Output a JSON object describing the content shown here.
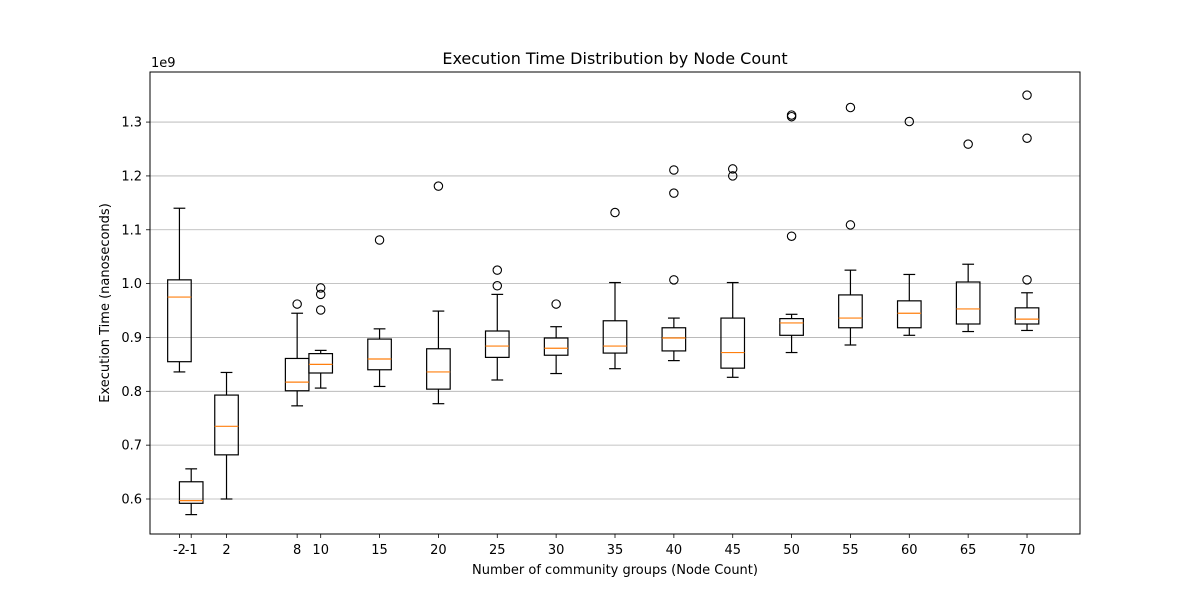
{
  "chart_data": {
    "type": "boxplot",
    "title": "Execution Time Distribution by Node Count",
    "xlabel": "Number of community groups (Node Count)",
    "ylabel": "Execution Time (nanoseconds)",
    "y_offset_label": "1e9",
    "y_scale": 1000000000,
    "xlim": [
      -4.5,
      74.5
    ],
    "ylim": [
      0.535,
      1.393
    ],
    "yticks": [
      0.6,
      0.7,
      0.8,
      0.9,
      1.0,
      1.1,
      1.2,
      1.3
    ],
    "ytick_labels": [
      "0.6",
      "0.7",
      "0.8",
      "0.9",
      "1.0",
      "1.1",
      "1.2",
      "1.3"
    ],
    "xticks": [
      -2,
      -1,
      2,
      8,
      10,
      15,
      20,
      25,
      30,
      35,
      40,
      45,
      50,
      55,
      60,
      65,
      70
    ],
    "xtick_labels": [
      "-2",
      "-1",
      "2",
      "8",
      "10",
      "15",
      "20",
      "25",
      "30",
      "35",
      "40",
      "45",
      "50",
      "55",
      "60",
      "65",
      "70"
    ],
    "grid": "y",
    "box_color": "#000000",
    "median_color": "#ff7f0e",
    "boxes": [
      {
        "x": -2,
        "whislo": 0.836,
        "q1": 0.855,
        "med": 0.975,
        "q3": 1.007,
        "whishi": 1.14,
        "fliers": []
      },
      {
        "x": -1,
        "whislo": 0.571,
        "q1": 0.592,
        "med": 0.597,
        "q3": 0.632,
        "whishi": 0.656,
        "fliers": []
      },
      {
        "x": 2,
        "whislo": 0.6,
        "q1": 0.682,
        "med": 0.735,
        "q3": 0.793,
        "whishi": 0.835,
        "fliers": []
      },
      {
        "x": 8,
        "whislo": 0.773,
        "q1": 0.801,
        "med": 0.817,
        "q3": 0.861,
        "whishi": 0.945,
        "fliers": [
          0.962
        ]
      },
      {
        "x": 10,
        "whislo": 0.806,
        "q1": 0.834,
        "med": 0.85,
        "q3": 0.87,
        "whishi": 0.876,
        "fliers": [
          0.951,
          0.98,
          0.992
        ]
      },
      {
        "x": 15,
        "whislo": 0.809,
        "q1": 0.84,
        "med": 0.86,
        "q3": 0.897,
        "whishi": 0.916,
        "fliers": [
          1.081
        ]
      },
      {
        "x": 20,
        "whislo": 0.777,
        "q1": 0.804,
        "med": 0.836,
        "q3": 0.879,
        "whishi": 0.949,
        "fliers": [
          1.181
        ]
      },
      {
        "x": 25,
        "whislo": 0.821,
        "q1": 0.863,
        "med": 0.884,
        "q3": 0.912,
        "whishi": 0.98,
        "fliers": [
          0.996,
          1.025
        ]
      },
      {
        "x": 30,
        "whislo": 0.833,
        "q1": 0.867,
        "med": 0.88,
        "q3": 0.899,
        "whishi": 0.92,
        "fliers": [
          0.962
        ]
      },
      {
        "x": 35,
        "whislo": 0.842,
        "q1": 0.871,
        "med": 0.884,
        "q3": 0.931,
        "whishi": 1.002,
        "fliers": [
          1.132
        ]
      },
      {
        "x": 40,
        "whislo": 0.857,
        "q1": 0.875,
        "med": 0.899,
        "q3": 0.918,
        "whishi": 0.936,
        "fliers": [
          1.007,
          1.168,
          1.211
        ]
      },
      {
        "x": 45,
        "whislo": 0.826,
        "q1": 0.843,
        "med": 0.872,
        "q3": 0.936,
        "whishi": 1.002,
        "fliers": [
          1.2,
          1.213
        ]
      },
      {
        "x": 50,
        "whislo": 0.872,
        "q1": 0.904,
        "med": 0.927,
        "q3": 0.935,
        "whishi": 0.943,
        "fliers": [
          1.088,
          1.31,
          1.313
        ]
      },
      {
        "x": 55,
        "whislo": 0.886,
        "q1": 0.918,
        "med": 0.936,
        "q3": 0.979,
        "whishi": 1.025,
        "fliers": [
          1.109,
          1.327
        ]
      },
      {
        "x": 60,
        "whislo": 0.904,
        "q1": 0.918,
        "med": 0.945,
        "q3": 0.968,
        "whishi": 1.017,
        "fliers": [
          1.301
        ]
      },
      {
        "x": 65,
        "whislo": 0.911,
        "q1": 0.925,
        "med": 0.953,
        "q3": 1.003,
        "whishi": 1.036,
        "fliers": [
          1.259
        ]
      },
      {
        "x": 70,
        "whislo": 0.913,
        "q1": 0.925,
        "med": 0.934,
        "q3": 0.955,
        "whishi": 0.983,
        "fliers": [
          1.007,
          1.27,
          1.35
        ]
      }
    ]
  }
}
